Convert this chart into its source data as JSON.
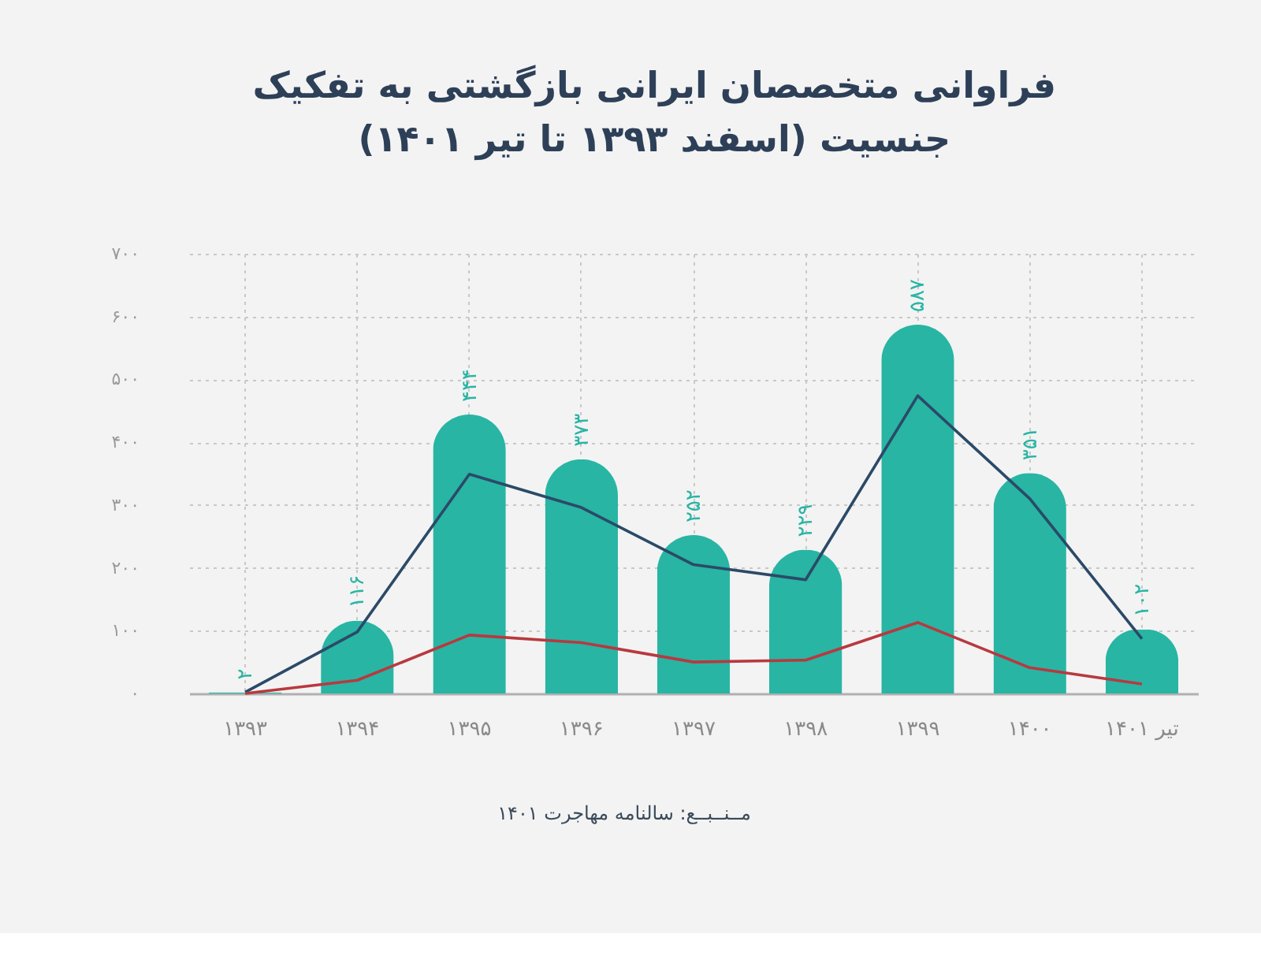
{
  "chart_data": {
    "type": "bar",
    "title": "فراوانی متخصصان ایرانی بازگشتی به تفکیک\nجنسیت (اسفند ۱۳۹۳ تا تیر ۱۴۰۱)",
    "categories": [
      "۱۳۹۳",
      "۱۳۹۴",
      "۱۳۹۵",
      "۱۳۹۶",
      "۱۳۹۷",
      "۱۳۹۸",
      "۱۳۹۹",
      "۱۴۰۰",
      "تیر ۱۴۰۱"
    ],
    "series": [
      {
        "color": "#28b5a4",
        "values": [
          2,
          116,
          444,
          373,
          252,
          229,
          587,
          351,
          102
        ],
        "value_labels": [
          "۲",
          "۱۱۶",
          "۴۴۴",
          "۳۷۳",
          "۲۵۲",
          "۲۲۹",
          "۵۸۷",
          "۳۵۱",
          "۱۰۲"
        ]
      },
      {
        "type": "line",
        "color": "#2b4a68",
        "values": [
          2,
          98,
          349,
          296,
          205,
          181,
          474,
          310,
          87
        ]
      },
      {
        "type": "line",
        "color": "#b8393f",
        "values": [
          0,
          21,
          93,
          81,
          50,
          53,
          113,
          41,
          15
        ]
      }
    ],
    "ylim": [
      0,
      700
    ],
    "yticks": [
      {
        "value": 0,
        "label": "۰"
      },
      {
        "value": 100,
        "label": "۱۰۰"
      },
      {
        "value": 200,
        "label": "۲۰۰"
      },
      {
        "value": 300,
        "label": "۳۰۰"
      },
      {
        "value": 400,
        "label": "۴۰۰"
      },
      {
        "value": 500,
        "label": "۵۰۰"
      },
      {
        "value": 600,
        "label": "۶۰۰"
      },
      {
        "value": 700,
        "label": "۷۰۰"
      }
    ],
    "grid": true,
    "line_style": "solid",
    "annotations": [
      "مــنــبــع: سالنامه مهاجرت ۱۴۰۱"
    ]
  }
}
